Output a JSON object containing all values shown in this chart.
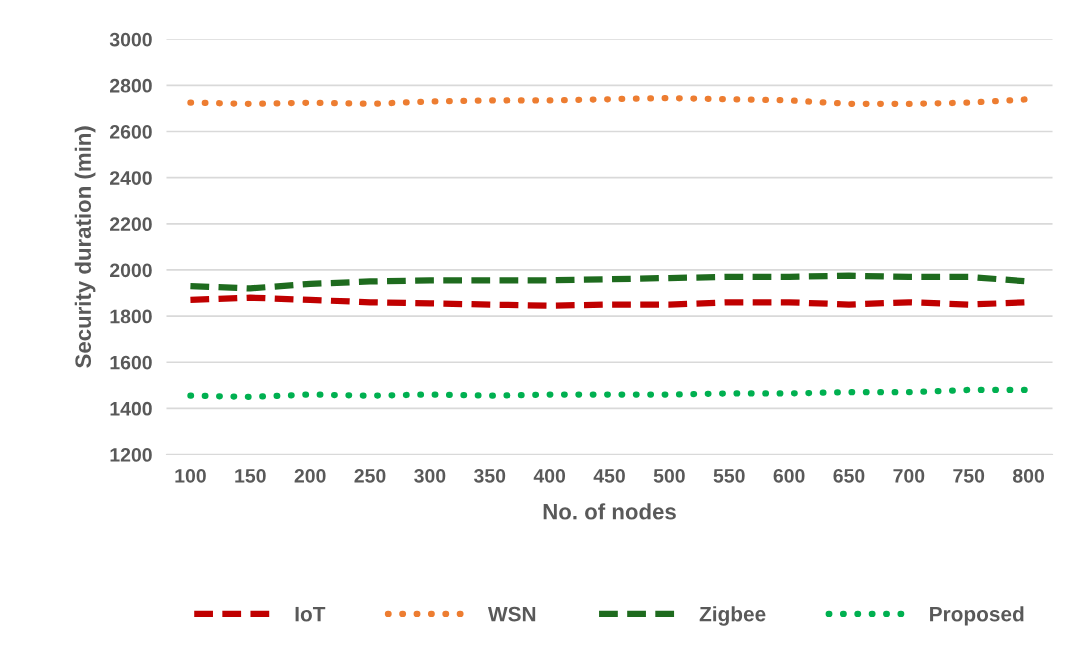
{
  "chart_data": {
    "type": "line",
    "xlabel": "No. of nodes",
    "ylabel": "Security duration (min)",
    "categories": [
      "100",
      "150",
      "200",
      "250",
      "300",
      "350",
      "400",
      "450",
      "500",
      "550",
      "600",
      "650",
      "700",
      "750",
      "800"
    ],
    "ylim": [
      1200,
      3000
    ],
    "yticks": [
      1200,
      1400,
      1600,
      1800,
      2000,
      2200,
      2400,
      2600,
      2800,
      3000
    ],
    "grid": "y",
    "legend": "bottom",
    "marker": "none",
    "series": [
      {
        "name": "IoT",
        "color": "#c00000",
        "line_style": "dashed",
        "values": [
          1870,
          1880,
          1870,
          1860,
          1855,
          1850,
          1845,
          1850,
          1850,
          1860,
          1860,
          1850,
          1860,
          1850,
          1860
        ]
      },
      {
        "name": "WSN",
        "color": "#ed7d31",
        "line_style": "dotted",
        "values": [
          2725,
          2720,
          2725,
          2720,
          2730,
          2735,
          2735,
          2740,
          2745,
          2740,
          2735,
          2720,
          2720,
          2725,
          2740
        ]
      },
      {
        "name": "Zigbee",
        "color": "#1e6b1e",
        "line_style": "dashed",
        "values": [
          1930,
          1920,
          1940,
          1950,
          1955,
          1955,
          1955,
          1960,
          1965,
          1970,
          1970,
          1975,
          1970,
          1970,
          1950
        ]
      },
      {
        "name": "Proposed",
        "color": "#00b050",
        "line_style": "dotted",
        "values": [
          1455,
          1450,
          1460,
          1455,
          1460,
          1455,
          1460,
          1460,
          1460,
          1465,
          1465,
          1470,
          1470,
          1480,
          1480
        ]
      }
    ]
  }
}
